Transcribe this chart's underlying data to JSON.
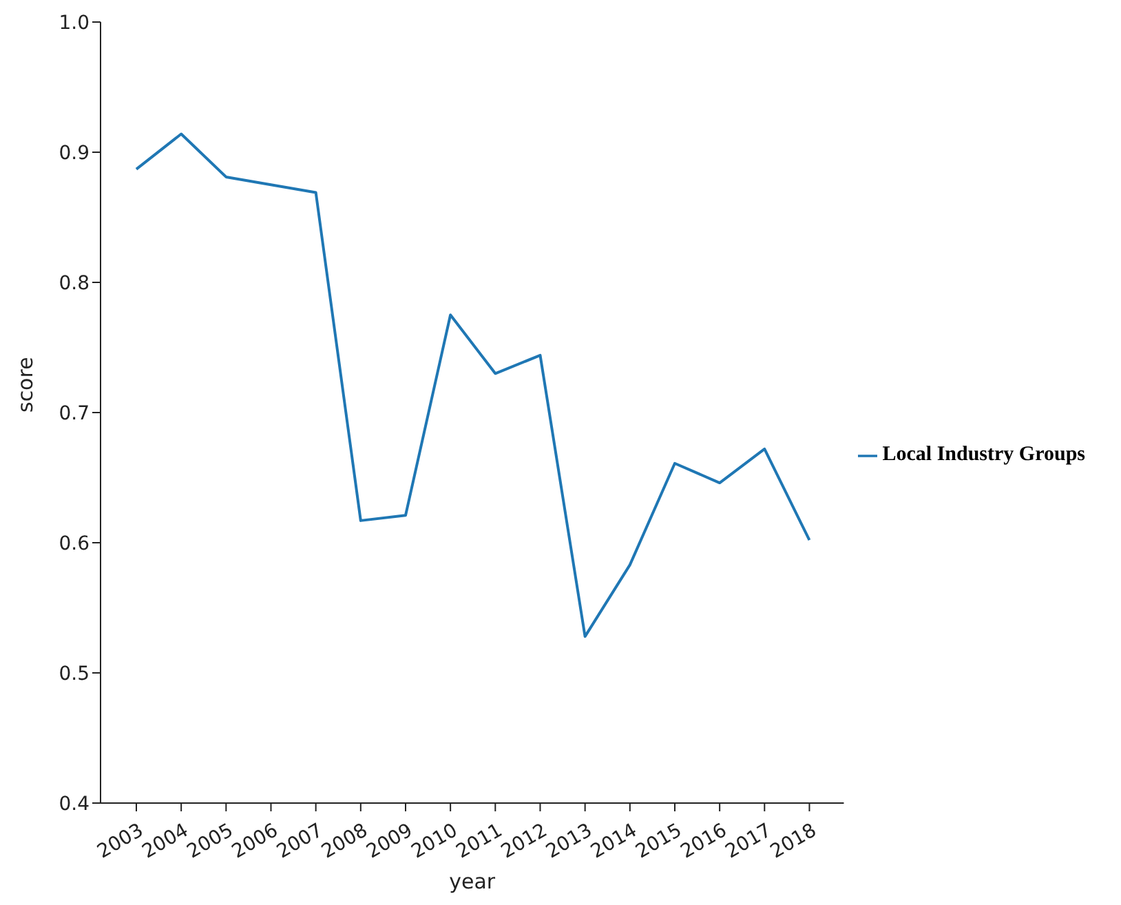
{
  "chart_data": {
    "type": "line",
    "xlabel": "year",
    "ylabel": "score",
    "categories": [
      "2003",
      "2004",
      "2005",
      "2006",
      "2007",
      "2008",
      "2009",
      "2010",
      "2011",
      "2012",
      "2013",
      "2014",
      "2015",
      "2016",
      "2017",
      "2018"
    ],
    "series": [
      {
        "name": "Local Industry Groups",
        "color": "#1f77b4",
        "values": [
          0.887,
          0.914,
          0.881,
          0.875,
          0.869,
          0.617,
          0.621,
          0.775,
          0.73,
          0.744,
          0.528,
          0.583,
          0.661,
          0.646,
          0.672,
          0.602
        ]
      }
    ],
    "ylim": [
      0.4,
      1.0
    ],
    "yticks": [
      0.4,
      0.5,
      0.6,
      0.7,
      0.8,
      0.9,
      {
        "value": 1,
        "label": "1.0"
      }
    ],
    "grid": false,
    "legend": "right",
    "marker": "none",
    "line_style": "solid"
  }
}
